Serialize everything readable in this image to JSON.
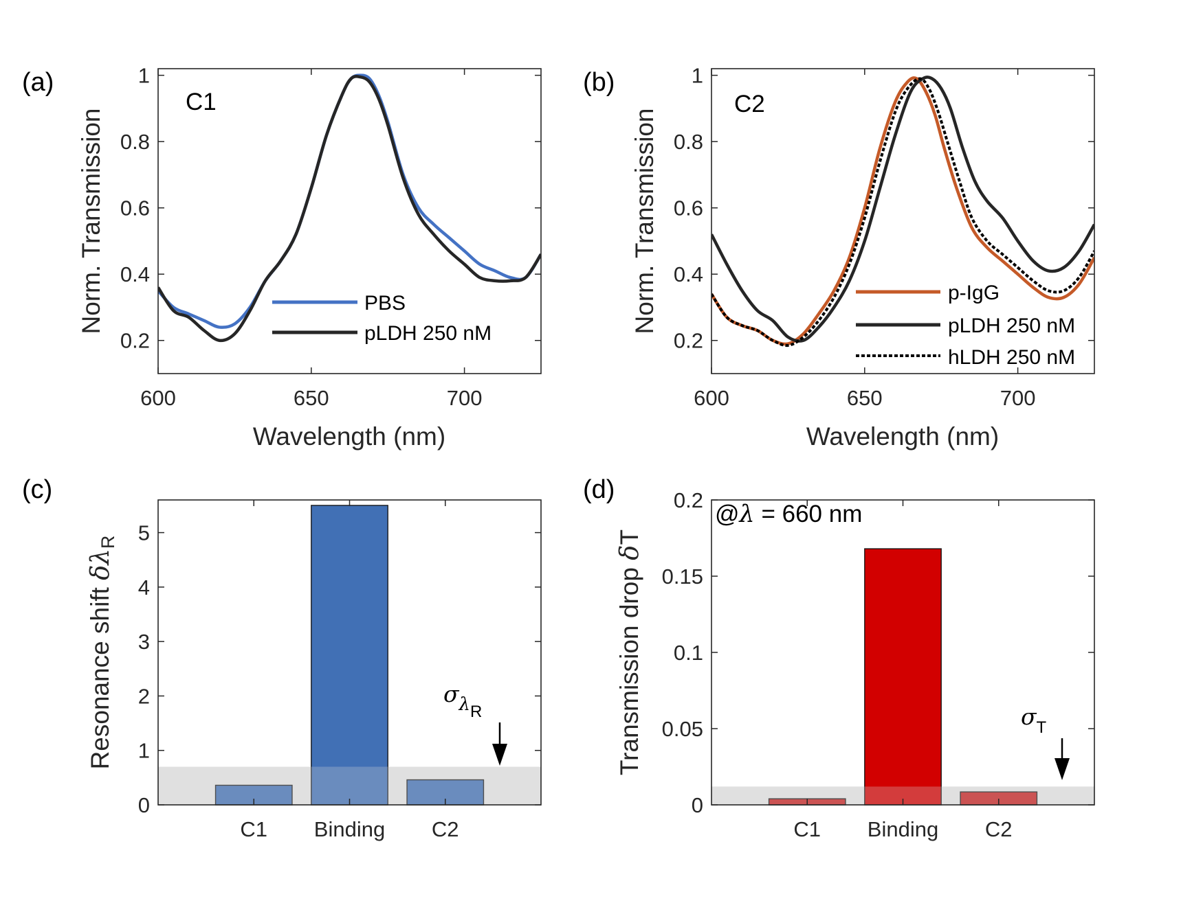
{
  "chart_data": [
    {
      "id": "a",
      "type": "line",
      "panel_label": "(a)",
      "annotation": "C1",
      "xlabel": "Wavelength (nm)",
      "ylabel": "Norm. Transmission",
      "xlim": [
        600,
        725
      ],
      "ylim": [
        0.1,
        1.02
      ],
      "xticks": [
        600,
        650,
        700
      ],
      "xtick_labels": [
        "600",
        "650",
        "700"
      ],
      "yticks": [
        0.2,
        0.4,
        0.6,
        0.8,
        1
      ],
      "ytick_labels": [
        "0.2",
        "0.4",
        "0.6",
        "0.8",
        "1"
      ],
      "legend_position": "lower-right",
      "series": [
        {
          "name": "PBS",
          "color": "#4472c4",
          "dash": "solid",
          "x": [
            600,
            605,
            610,
            615,
            620,
            625,
            630,
            635,
            640,
            645,
            650,
            655,
            660,
            663,
            666,
            669,
            672,
            675,
            680,
            685,
            690,
            695,
            700,
            705,
            710,
            715,
            720,
            725
          ],
          "y": [
            0.35,
            0.3,
            0.28,
            0.26,
            0.24,
            0.25,
            0.3,
            0.38,
            0.44,
            0.52,
            0.66,
            0.82,
            0.94,
            0.99,
            1.0,
            0.99,
            0.94,
            0.86,
            0.7,
            0.6,
            0.55,
            0.51,
            0.47,
            0.43,
            0.41,
            0.39,
            0.39,
            0.46
          ]
        },
        {
          "name": "pLDH 250 nM",
          "color": "#262626",
          "dash": "solid",
          "x": [
            600,
            605,
            610,
            615,
            620,
            625,
            630,
            635,
            640,
            645,
            650,
            655,
            660,
            663,
            666,
            669,
            672,
            675,
            680,
            685,
            690,
            695,
            700,
            705,
            710,
            715,
            720,
            725
          ],
          "y": [
            0.36,
            0.29,
            0.27,
            0.23,
            0.2,
            0.22,
            0.29,
            0.38,
            0.44,
            0.52,
            0.66,
            0.82,
            0.94,
            0.99,
            0.995,
            0.98,
            0.93,
            0.85,
            0.69,
            0.58,
            0.52,
            0.47,
            0.43,
            0.39,
            0.38,
            0.38,
            0.39,
            0.46
          ]
        }
      ]
    },
    {
      "id": "b",
      "type": "line",
      "panel_label": "(b)",
      "annotation": "C2",
      "xlabel": "Wavelength (nm)",
      "ylabel": "Norm. Transmission",
      "xlim": [
        600,
        725
      ],
      "ylim": [
        0.1,
        1.02
      ],
      "xticks": [
        600,
        650,
        700
      ],
      "xtick_labels": [
        "600",
        "650",
        "700"
      ],
      "yticks": [
        0.2,
        0.4,
        0.6,
        0.8,
        1
      ],
      "ytick_labels": [
        "0.2",
        "0.4",
        "0.6",
        "0.8",
        "1"
      ],
      "legend_position": "lower-right",
      "series": [
        {
          "name": "p-IgG",
          "color": "#c55a28",
          "dash": "solid",
          "x": [
            600,
            605,
            610,
            615,
            620,
            625,
            630,
            635,
            640,
            645,
            650,
            655,
            660,
            664,
            667,
            670,
            673,
            676,
            680,
            685,
            690,
            695,
            700,
            705,
            710,
            715,
            720,
            725
          ],
          "y": [
            0.34,
            0.27,
            0.245,
            0.23,
            0.2,
            0.19,
            0.22,
            0.28,
            0.35,
            0.45,
            0.6,
            0.78,
            0.92,
            0.98,
            0.99,
            0.95,
            0.88,
            0.78,
            0.66,
            0.54,
            0.48,
            0.44,
            0.4,
            0.36,
            0.33,
            0.33,
            0.37,
            0.45
          ]
        },
        {
          "name": "pLDH 250 nM",
          "color": "#262626",
          "dash": "solid",
          "x": [
            600,
            605,
            610,
            615,
            620,
            625,
            630,
            635,
            640,
            645,
            650,
            655,
            660,
            665,
            669,
            672,
            675,
            678,
            682,
            686,
            690,
            695,
            700,
            705,
            710,
            715,
            720,
            725
          ],
          "y": [
            0.52,
            0.43,
            0.35,
            0.29,
            0.26,
            0.21,
            0.2,
            0.24,
            0.3,
            0.38,
            0.5,
            0.66,
            0.82,
            0.95,
            0.99,
            0.99,
            0.96,
            0.9,
            0.78,
            0.68,
            0.62,
            0.57,
            0.5,
            0.44,
            0.41,
            0.42,
            0.47,
            0.55
          ]
        },
        {
          "name": "hLDH 250 nM",
          "color": "#000000",
          "dash": "dotted",
          "x": [
            600,
            605,
            610,
            615,
            620,
            625,
            630,
            635,
            640,
            645,
            650,
            655,
            660,
            664,
            668,
            671,
            674,
            677,
            681,
            685,
            690,
            695,
            700,
            705,
            710,
            715,
            720,
            725
          ],
          "y": [
            0.34,
            0.27,
            0.245,
            0.23,
            0.2,
            0.185,
            0.21,
            0.26,
            0.33,
            0.43,
            0.57,
            0.74,
            0.89,
            0.96,
            0.99,
            0.96,
            0.89,
            0.8,
            0.68,
            0.57,
            0.5,
            0.46,
            0.42,
            0.38,
            0.35,
            0.35,
            0.39,
            0.47
          ]
        }
      ]
    },
    {
      "id": "c",
      "type": "bar",
      "panel_label": "(c)",
      "ylabel_text": "Resonance shift ",
      "ylabel_symbol": "δλ",
      "ylabel_sub": "R",
      "categories": [
        "C1",
        "Binding",
        "C2"
      ],
      "values": [
        0.36,
        5.5,
        0.46
      ],
      "bar_color": "#4170b5",
      "xlim": [
        0,
        4
      ],
      "ylim": [
        0,
        5.6
      ],
      "yticks": [
        0,
        1,
        2,
        3,
        4,
        5
      ],
      "ytick_labels": [
        "0",
        "1",
        "2",
        "3",
        "4",
        "5"
      ],
      "noise_band": 0.7,
      "noise_symbol": "σ",
      "noise_sub": "λ",
      "noise_subsub": "R"
    },
    {
      "id": "d",
      "type": "bar",
      "panel_label": "(d)",
      "annotation_prefix": "@",
      "annotation_symbol": "λ",
      "annotation_value": " = 660 nm",
      "ylabel_text": "Transmission drop ",
      "ylabel_symbol": "δ",
      "ylabel_tail": "T",
      "categories": [
        "C1",
        "Binding",
        "C2"
      ],
      "values": [
        0.004,
        0.168,
        0.0085
      ],
      "bar_color": "#d20000",
      "side_bar_color": "#c72020",
      "xlim": [
        0,
        4
      ],
      "ylim": [
        0,
        0.2
      ],
      "yticks": [
        0,
        0.05,
        0.1,
        0.15,
        0.2
      ],
      "ytick_labels": [
        "0",
        "0.05",
        "0.1",
        "0.15",
        "0.2"
      ],
      "noise_band": 0.012,
      "noise_symbol": "σ",
      "noise_sub": "T"
    }
  ]
}
